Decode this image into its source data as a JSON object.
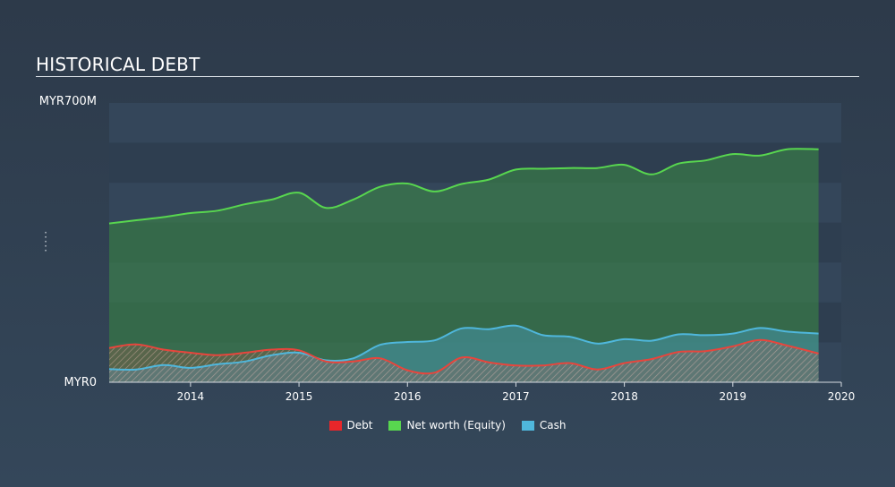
{
  "chart_data": {
    "type": "area",
    "title": "HISTORICAL DEBT",
    "y_tick_labels": {
      "max": "MYR700M",
      "min": "MYR0"
    },
    "ylim": [
      0,
      700
    ],
    "xlim": [
      2013.25,
      2020
    ],
    "x_ticks": [
      2014,
      2015,
      2016,
      2017,
      2018,
      2019,
      2020
    ],
    "x_tick_labels": [
      "2014",
      "2015",
      "2016",
      "2017",
      "2018",
      "2019",
      "2020"
    ],
    "x": [
      2013.25,
      2013.5,
      2013.75,
      2014.0,
      2014.25,
      2014.5,
      2014.75,
      2015.0,
      2015.25,
      2015.5,
      2015.75,
      2016.0,
      2016.25,
      2016.5,
      2016.75,
      2017.0,
      2017.25,
      2017.5,
      2017.75,
      2018.0,
      2018.25,
      2018.5,
      2018.75,
      2019.0,
      2019.25,
      2019.5,
      2019.79
    ],
    "series": [
      {
        "name": "Debt",
        "color": "#e8453c",
        "fill": "hatch",
        "values": [
          86,
          95,
          82,
          74,
          68,
          74,
          82,
          80,
          52,
          52,
          60,
          30,
          24,
          62,
          50,
          42,
          42,
          48,
          32,
          48,
          58,
          76,
          78,
          90,
          106,
          92,
          72
        ]
      },
      {
        "name": "Net worth (Equity)",
        "color": "#58d64f",
        "fill": "solid",
        "values": [
          398,
          406,
          414,
          424,
          430,
          446,
          458,
          475,
          437,
          458,
          490,
          498,
          478,
          497,
          508,
          533,
          535,
          537,
          537,
          545,
          521,
          548,
          556,
          572,
          568,
          584,
          584
        ]
      },
      {
        "name": "Cash",
        "color": "#4fb7dc",
        "fill": "solid",
        "values": [
          33,
          32,
          43,
          36,
          45,
          52,
          68,
          74,
          55,
          60,
          94,
          101,
          105,
          135,
          133,
          142,
          118,
          114,
          97,
          108,
          104,
          120,
          118,
          122,
          136,
          127,
          122
        ]
      }
    ],
    "legend": [
      "Debt",
      "Net worth (Equity)",
      "Cash"
    ],
    "legend_position": "bottom-center"
  }
}
